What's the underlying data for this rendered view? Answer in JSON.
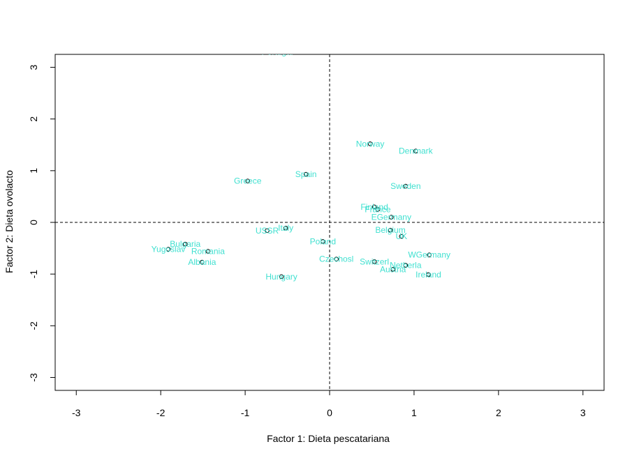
{
  "chart_data": {
    "type": "scatter",
    "title": "",
    "xlabel": "Factor 1: Dieta pescatariana",
    "ylabel": "Factor 2: Dieta ovolacto",
    "xlim": [
      -3.25,
      3.25
    ],
    "ylim": [
      -3.25,
      3.25
    ],
    "xticks": [
      -3,
      -2,
      -1,
      0,
      1,
      2,
      3
    ],
    "yticks": [
      -3,
      -2,
      -1,
      0,
      1,
      2,
      3
    ],
    "xtick_labels": [
      "-3",
      "-2",
      "-1",
      "0",
      "1",
      "2",
      "3"
    ],
    "ytick_labels": [
      "-3",
      "-2",
      "-1",
      "0",
      "1",
      "2",
      "3"
    ],
    "reference_lines": {
      "x": 0,
      "y": 0,
      "style": "dashed"
    },
    "grid": false,
    "point_color": "#000000",
    "label_color": "#40E0D0",
    "points": [
      {
        "label": "Portugal",
        "x": -0.62,
        "y": 3.3
      },
      {
        "label": "Norway",
        "x": 0.48,
        "y": 1.52
      },
      {
        "label": "Denmark",
        "x": 1.02,
        "y": 1.38
      },
      {
        "label": "Spain",
        "x": -0.28,
        "y": 0.93
      },
      {
        "label": "Greece",
        "x": -0.97,
        "y": 0.8
      },
      {
        "label": "Sweden",
        "x": 0.9,
        "y": 0.7
      },
      {
        "label": "Finland",
        "x": 0.53,
        "y": 0.3
      },
      {
        "label": "France",
        "x": 0.57,
        "y": 0.25
      },
      {
        "label": "EGermany",
        "x": 0.73,
        "y": 0.1
      },
      {
        "label": "Italy",
        "x": -0.52,
        "y": -0.11
      },
      {
        "label": "USSR",
        "x": -0.74,
        "y": -0.16
      },
      {
        "label": "Belgium",
        "x": 0.72,
        "y": -0.15
      },
      {
        "label": "UK",
        "x": 0.85,
        "y": -0.27
      },
      {
        "label": "Poland",
        "x": -0.08,
        "y": -0.37
      },
      {
        "label": "Bulgaria",
        "x": -1.71,
        "y": -0.42
      },
      {
        "label": "Yugoslav",
        "x": -1.91,
        "y": -0.52
      },
      {
        "label": "Romania",
        "x": -1.44,
        "y": -0.56
      },
      {
        "label": "WGermany",
        "x": 1.18,
        "y": -0.63
      },
      {
        "label": "Czechosl",
        "x": 0.08,
        "y": -0.71
      },
      {
        "label": "Switzerl",
        "x": 0.53,
        "y": -0.76
      },
      {
        "label": "Albania",
        "x": -1.51,
        "y": -0.77
      },
      {
        "label": "Netherla",
        "x": 0.9,
        "y": -0.83
      },
      {
        "label": "Austria",
        "x": 0.75,
        "y": -0.91
      },
      {
        "label": "Ireland",
        "x": 1.17,
        "y": -1.01
      },
      {
        "label": "Hungary",
        "x": -0.57,
        "y": -1.05
      }
    ]
  }
}
